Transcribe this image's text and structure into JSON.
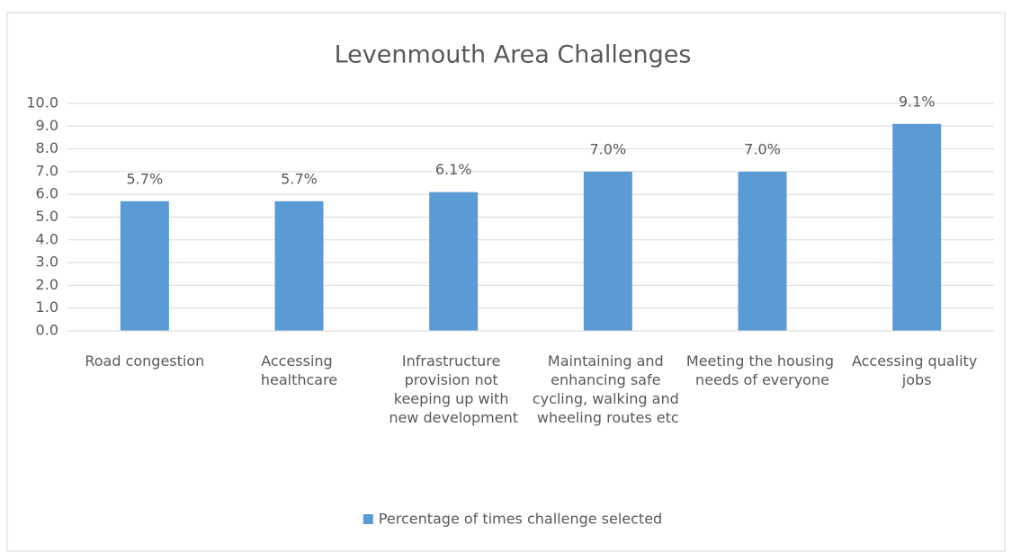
{
  "chart_data": {
    "type": "bar",
    "title": "Levenmouth Area Challenges",
    "categories": [
      "Road congestion",
      "Accessing healthcare",
      "Infrastructure provision not keeping up with new development",
      "Maintaining and enhancing safe cycling, walking and wheeling routes etc",
      "Meeting the housing needs of everyone",
      "Accessing quality jobs"
    ],
    "series": [
      {
        "name": "Percentage of times challenge selected",
        "color": "#5b9bd5",
        "values": [
          5.7,
          5.7,
          6.1,
          7.0,
          7.0,
          9.1
        ],
        "value_labels": [
          "5.7%",
          "5.7%",
          "6.1%",
          "7.0%",
          "7.0%",
          "9.1%"
        ]
      }
    ],
    "ylim": [
      0,
      10
    ],
    "yticks": [
      {
        "value": 0,
        "label": "0.0"
      },
      {
        "value": 1,
        "label": "1.0"
      },
      {
        "value": 2,
        "label": "2.0"
      },
      {
        "value": 3,
        "label": "3.0"
      },
      {
        "value": 4,
        "label": "4.0"
      },
      {
        "value": 5,
        "label": "5.0"
      },
      {
        "value": 6,
        "label": "6.0"
      },
      {
        "value": 7,
        "label": "7.0"
      },
      {
        "value": 8,
        "label": "8.0"
      },
      {
        "value": 9,
        "label": "9.0"
      },
      {
        "value": 10,
        "label": "10.0"
      }
    ],
    "grid": true,
    "legend": "bottom"
  }
}
